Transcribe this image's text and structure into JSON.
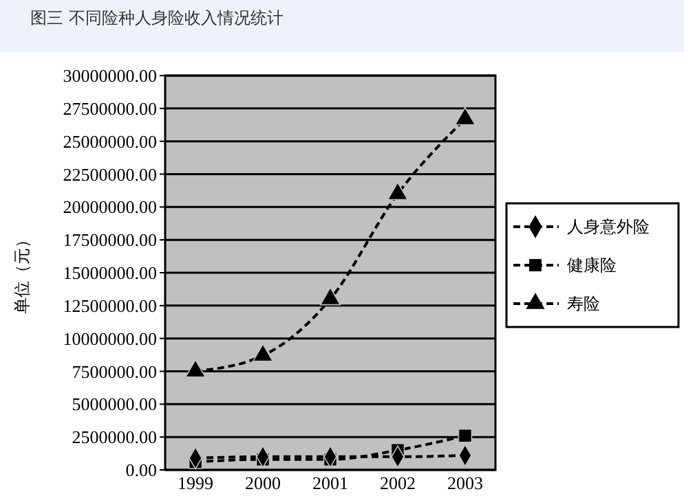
{
  "chart_data": {
    "type": "line",
    "title": "图三 不同险种人身险收入情况统计",
    "ylabel": "单位（元）",
    "categories": [
      "1999",
      "2000",
      "2001",
      "2002",
      "2003"
    ],
    "series": [
      {
        "name": "人身意外险",
        "color": "#000000",
        "marker": "diamond",
        "values": [
          900000,
          1000000,
          1000000,
          1000000,
          1100000
        ]
      },
      {
        "name": "健康险",
        "color": "#000000",
        "marker": "square",
        "values": [
          600000,
          800000,
          800000,
          1500000,
          2600000
        ]
      },
      {
        "name": "寿险",
        "color": "#000000",
        "marker": "triangle",
        "values": [
          7500000,
          8700000,
          13000000,
          21000000,
          26700000
        ]
      }
    ],
    "ylim": [
      0,
      30000000
    ],
    "yticks": [
      {
        "value": 0,
        "label": "0.00"
      },
      {
        "value": 2500000,
        "label": "2500000.00"
      },
      {
        "value": 5000000,
        "label": "5000000.00"
      },
      {
        "value": 7500000,
        "label": "7500000.00"
      },
      {
        "value": 10000000,
        "label": "10000000.00"
      },
      {
        "value": 12500000,
        "label": "12500000.00"
      },
      {
        "value": 15000000,
        "label": "15000000.00"
      },
      {
        "value": 17500000,
        "label": "17500000.00"
      },
      {
        "value": 20000000,
        "label": "20000000.00"
      },
      {
        "value": 22500000,
        "label": "22500000.00"
      },
      {
        "value": 25000000,
        "label": "25000000.00"
      },
      {
        "value": 27500000,
        "label": "27500000.00"
      },
      {
        "value": 30000000,
        "label": "30000000.00"
      }
    ],
    "grid": "y",
    "legend": "right",
    "line_style": "dashed"
  }
}
